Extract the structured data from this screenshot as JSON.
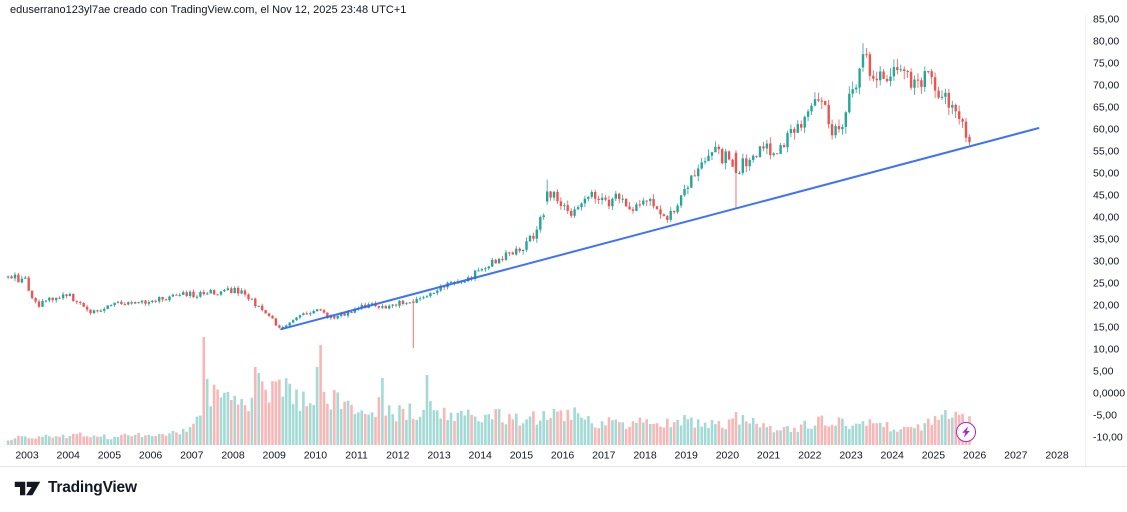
{
  "header": {
    "attribution": "eduserrano123yl7ae creado con TradingView.com, el Nov 12, 2025 23:48 UTC+1"
  },
  "footer": {
    "logo_text": "TradingView"
  },
  "colors": {
    "background": "#ffffff",
    "candle_up": "#26a69a",
    "candle_down": "#ef5350",
    "volume_up": "rgba(38,166,154,0.42)",
    "volume_down": "rgba(239,83,80,0.42)",
    "trendline": "#2962ff",
    "axis_text": "#131722",
    "separator": "#e0e3eb",
    "flash_icon": "#ab25c4",
    "logo": "#131722"
  },
  "chart_data": {
    "type": "candlestick",
    "timeframe": "monthly",
    "series_start_month": "2002-07",
    "series_end_month": "2025-11",
    "x_axis": {
      "tick_labels": [
        "2003",
        "2004",
        "2005",
        "2006",
        "2007",
        "2008",
        "2009",
        "2010",
        "2011",
        "2012",
        "2013",
        "2014",
        "2015",
        "2016",
        "2017",
        "2018",
        "2019",
        "2020",
        "2021",
        "2022",
        "2023",
        "2024",
        "2025",
        "2026",
        "2027",
        "2028"
      ]
    },
    "y_axis": {
      "tick_labels": [
        "85,00",
        "80,00",
        "75,00",
        "70,00",
        "65,00",
        "60,00",
        "55,00",
        "50,00",
        "45,00",
        "40,00",
        "35,00",
        "30,00",
        "25,00",
        "20,00",
        "15,00",
        "10,00",
        "5,00",
        "0,0000",
        "-5,00",
        "-10,00"
      ],
      "tick_values": [
        85,
        80,
        75,
        70,
        65,
        60,
        55,
        50,
        45,
        40,
        35,
        30,
        25,
        20,
        15,
        10,
        5,
        0,
        -5,
        -10
      ],
      "range_shown": [
        -10,
        85
      ]
    },
    "close_anchors": [
      [
        2002.5,
        25.8
      ],
      [
        2002.67,
        26.5
      ],
      [
        2002.83,
        25.2
      ],
      [
        2003.0,
        25.8
      ],
      [
        2003.08,
        22.0
      ],
      [
        2003.25,
        19.8
      ],
      [
        2003.5,
        21.0
      ],
      [
        2003.75,
        21.8
      ],
      [
        2004.0,
        22.2
      ],
      [
        2004.25,
        20.5
      ],
      [
        2004.5,
        18.3
      ],
      [
        2004.75,
        19.0
      ],
      [
        2005.0,
        20.3
      ],
      [
        2005.33,
        20.8
      ],
      [
        2005.58,
        20.0
      ],
      [
        2005.83,
        20.8
      ],
      [
        2006.17,
        21.5
      ],
      [
        2006.5,
        21.8
      ],
      [
        2006.83,
        22.6
      ],
      [
        2007.08,
        22.2
      ],
      [
        2007.42,
        23.2
      ],
      [
        2007.67,
        22.4
      ],
      [
        2007.92,
        23.3
      ],
      [
        2008.08,
        23.6
      ],
      [
        2008.33,
        21.8
      ],
      [
        2008.58,
        20.0
      ],
      [
        2008.83,
        17.5
      ],
      [
        2009.08,
        15.5
      ],
      [
        2009.17,
        14.8
      ],
      [
        2009.42,
        16.2
      ],
      [
        2009.67,
        17.5
      ],
      [
        2009.92,
        18.3
      ],
      [
        2010.08,
        18.6
      ],
      [
        2010.33,
        17.2
      ],
      [
        2010.58,
        17.6
      ],
      [
        2010.83,
        18.4
      ],
      [
        2011.08,
        19.4
      ],
      [
        2011.33,
        20.0
      ],
      [
        2011.58,
        19.3
      ],
      [
        2011.83,
        19.8
      ],
      [
        2012.08,
        20.6
      ],
      [
        2012.33,
        20.6
      ],
      [
        2012.58,
        21.2
      ],
      [
        2012.83,
        22.2
      ],
      [
        2013.08,
        24.2
      ],
      [
        2013.42,
        25.6
      ],
      [
        2013.75,
        26.4
      ],
      [
        2014.08,
        28.4
      ],
      [
        2014.42,
        30.4
      ],
      [
        2014.75,
        31.6
      ],
      [
        2015.08,
        33.8
      ],
      [
        2015.33,
        36.5
      ],
      [
        2015.58,
        41.5
      ],
      [
        2015.75,
        45.8
      ],
      [
        2015.92,
        44.0
      ],
      [
        2016.17,
        41.2
      ],
      [
        2016.42,
        43.0
      ],
      [
        2016.67,
        44.6
      ],
      [
        2016.92,
        44.2
      ],
      [
        2017.17,
        43.6
      ],
      [
        2017.42,
        44.8
      ],
      [
        2017.67,
        40.8
      ],
      [
        2017.92,
        42.5
      ],
      [
        2018.08,
        43.8
      ],
      [
        2018.33,
        41.8
      ],
      [
        2018.5,
        39.8
      ],
      [
        2018.75,
        41.5
      ],
      [
        2019.0,
        46.0
      ],
      [
        2019.25,
        50.5
      ],
      [
        2019.5,
        54.0
      ],
      [
        2019.67,
        55.0
      ],
      [
        2019.92,
        53.2
      ],
      [
        2020.08,
        54.6
      ],
      [
        2020.17,
        50.0
      ],
      [
        2020.42,
        52.8
      ],
      [
        2020.67,
        54.2
      ],
      [
        2020.92,
        55.6
      ],
      [
        2021.17,
        55.2
      ],
      [
        2021.42,
        57.6
      ],
      [
        2021.67,
        59.6
      ],
      [
        2021.92,
        62.2
      ],
      [
        2022.08,
        65.4
      ],
      [
        2022.25,
        68.4
      ],
      [
        2022.42,
        62.5
      ],
      [
        2022.58,
        58.2
      ],
      [
        2022.83,
        63.0
      ],
      [
        2023.0,
        67.2
      ],
      [
        2023.17,
        72.5
      ],
      [
        2023.33,
        77.0
      ],
      [
        2023.5,
        71.0
      ],
      [
        2023.67,
        73.8
      ],
      [
        2023.92,
        72.0
      ],
      [
        2024.08,
        75.0
      ],
      [
        2024.25,
        73.0
      ],
      [
        2024.5,
        68.8
      ],
      [
        2024.67,
        71.0
      ],
      [
        2024.83,
        73.4
      ],
      [
        2025.0,
        69.5
      ],
      [
        2025.17,
        66.0
      ],
      [
        2025.33,
        67.5
      ],
      [
        2025.42,
        64.0
      ],
      [
        2025.58,
        65.5
      ],
      [
        2025.67,
        61.5
      ],
      [
        2025.75,
        59.0
      ],
      [
        2025.83,
        57.0
      ]
    ],
    "special_candles": [
      {
        "month": "2012-05",
        "open": 20.8,
        "high": 21.4,
        "low": 10.2,
        "close": 20.5
      },
      {
        "month": "2015-08",
        "open": 43.5,
        "high": 48.5,
        "low": 42.8,
        "close": 45.8
      },
      {
        "month": "2020-03",
        "open": 54.6,
        "high": 55.2,
        "low": 42.0,
        "close": 50.0
      },
      {
        "month": "2023-04",
        "open": 74.0,
        "high": 79.5,
        "low": 73.0,
        "close": 77.0
      },
      {
        "month": "2025-11",
        "open": 58.2,
        "high": 58.8,
        "low": 56.3,
        "close": 57.0
      }
    ],
    "volume_anchors": [
      [
        2002.5,
        6
      ],
      [
        2003.0,
        8
      ],
      [
        2003.5,
        10
      ],
      [
        2004.0,
        9
      ],
      [
        2004.5,
        11
      ],
      [
        2005.0,
        8
      ],
      [
        2005.5,
        9
      ],
      [
        2006.0,
        11
      ],
      [
        2006.5,
        13
      ],
      [
        2006.9,
        16
      ],
      [
        2007.2,
        32
      ],
      [
        2007.6,
        55
      ],
      [
        2007.9,
        42
      ],
      [
        2008.2,
        40
      ],
      [
        2008.6,
        58
      ],
      [
        2009.0,
        50
      ],
      [
        2009.3,
        58
      ],
      [
        2009.6,
        46
      ],
      [
        2009.9,
        44
      ],
      [
        2010.2,
        52
      ],
      [
        2010.5,
        50
      ],
      [
        2010.8,
        36
      ],
      [
        2011.2,
        32
      ],
      [
        2011.5,
        38
      ],
      [
        2011.8,
        36
      ],
      [
        2012.1,
        30
      ],
      [
        2012.4,
        34
      ],
      [
        2012.85,
        44
      ],
      [
        2013.1,
        36
      ],
      [
        2013.5,
        30
      ],
      [
        2014.0,
        27
      ],
      [
        2014.5,
        30
      ],
      [
        2015.0,
        24
      ],
      [
        2015.5,
        28
      ],
      [
        2015.9,
        32
      ],
      [
        2016.2,
        34
      ],
      [
        2016.6,
        26
      ],
      [
        2017.0,
        22
      ],
      [
        2017.5,
        20
      ],
      [
        2018.0,
        24
      ],
      [
        2018.5,
        21
      ],
      [
        2019.0,
        24
      ],
      [
        2019.5,
        19
      ],
      [
        2020.0,
        22
      ],
      [
        2020.2,
        30
      ],
      [
        2020.6,
        22
      ],
      [
        2021.0,
        18
      ],
      [
        2021.5,
        16
      ],
      [
        2022.0,
        21
      ],
      [
        2022.5,
        24
      ],
      [
        2023.0,
        19
      ],
      [
        2023.3,
        24
      ],
      [
        2023.7,
        17
      ],
      [
        2024.0,
        19
      ],
      [
        2024.5,
        17
      ],
      [
        2025.0,
        24
      ],
      [
        2025.3,
        28
      ],
      [
        2025.6,
        32
      ],
      [
        2025.83,
        26
      ]
    ],
    "volume_special_bars": {
      "2007-04": 108,
      "2007-05": 66,
      "2008-07": 78,
      "2008-08": 72,
      "2010-01": 78,
      "2010-02": 100,
      "2011-08": 67,
      "2012-09": 70
    },
    "trendline": {
      "from_year": 2009.17,
      "from_price": 14.5,
      "to_year": 2027.55,
      "to_price": 60.2
    }
  }
}
